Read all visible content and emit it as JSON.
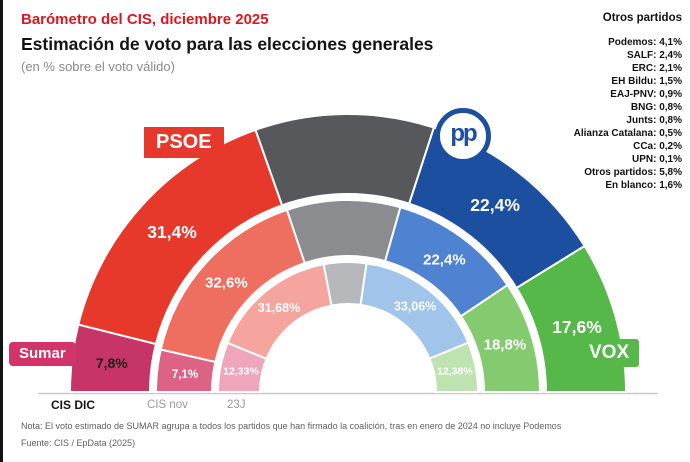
{
  "header": {
    "kicker": "Barómetro del CIS, diciembre 2025",
    "title": "Estimación de voto para las elecciones generales",
    "subtitle": "(en % sobre el voto válido)"
  },
  "others_panel": {
    "title": "Otros partidos",
    "items": [
      {
        "name": "Podemos",
        "value": "4,1%"
      },
      {
        "name": "SALF",
        "value": "2,4%"
      },
      {
        "name": "ERC",
        "value": "2,1%"
      },
      {
        "name": "EH Bildu",
        "value": "1,5%"
      },
      {
        "name": "EAJ-PNV",
        "value": "0,9%"
      },
      {
        "name": "BNG",
        "value": "0,8%"
      },
      {
        "name": "Junts",
        "value": "0,8%"
      },
      {
        "name": "Alianza Catalana",
        "value": "0,5%"
      },
      {
        "name": "CCa",
        "value": "0,2%"
      },
      {
        "name": "UPN",
        "value": "0,1%"
      },
      {
        "name": "Otros partidos",
        "value": "5,8%"
      },
      {
        "name": "En blanco",
        "value": "1,6%"
      }
    ]
  },
  "badges": {
    "psoe": "PSOE",
    "pp": "pp",
    "sumar": "Sumar",
    "vox": "VOX"
  },
  "chart_data": {
    "type": "pie",
    "variant": "nested-half-donut",
    "title": "Barómetro del CIS, diciembre 2025",
    "subtitle": "Estimación de voto para las elecciones generales",
    "unit": "% sobre el voto válido",
    "total_span_degrees": 180,
    "segments": [
      "Sumar",
      "PSOE",
      "Otros",
      "PP",
      "VOX"
    ],
    "label_dark": [
      [
        0,
        0
      ]
    ],
    "rings": [
      {
        "label": "CIS DIC",
        "values": [
          7.8,
          31.4,
          20.8,
          22.4,
          17.6
        ],
        "display": [
          "7,8%",
          "31,4%",
          "",
          "22,4%",
          "17,6%"
        ],
        "colors": [
          "#c73568",
          "#e6392c",
          "#56585c",
          "#1d4fa1",
          "#55b848"
        ]
      },
      {
        "label": "CIS nov",
        "values": [
          7.1,
          32.6,
          19.1,
          22.4,
          18.8
        ],
        "display": [
          "7,1%",
          "32,6%",
          "",
          "22,4%",
          "18,8%"
        ],
        "colors": [
          "#dd6386",
          "#ee6e60",
          "#8a8c8f",
          "#4f83d1",
          "#84cb70"
        ]
      },
      {
        "label": "23J",
        "values": [
          12.33,
          31.68,
          10.55,
          33.06,
          12.38
        ],
        "display": [
          "12,33%",
          "31,68%",
          "",
          "33,06%",
          "12,38%"
        ],
        "colors": [
          "#efa6ba",
          "#f5a59d",
          "#b7b8bb",
          "#a0c4ea",
          "#bfe3b0"
        ]
      }
    ]
  },
  "footer": {
    "note": "Nota: El voto estimado de SUMAR agrupa a todos los partidos que han firmado la coalición, tras en enero de 2024 no incluye Podemos",
    "source": "Fuente: CIS / EpData (2025)"
  }
}
